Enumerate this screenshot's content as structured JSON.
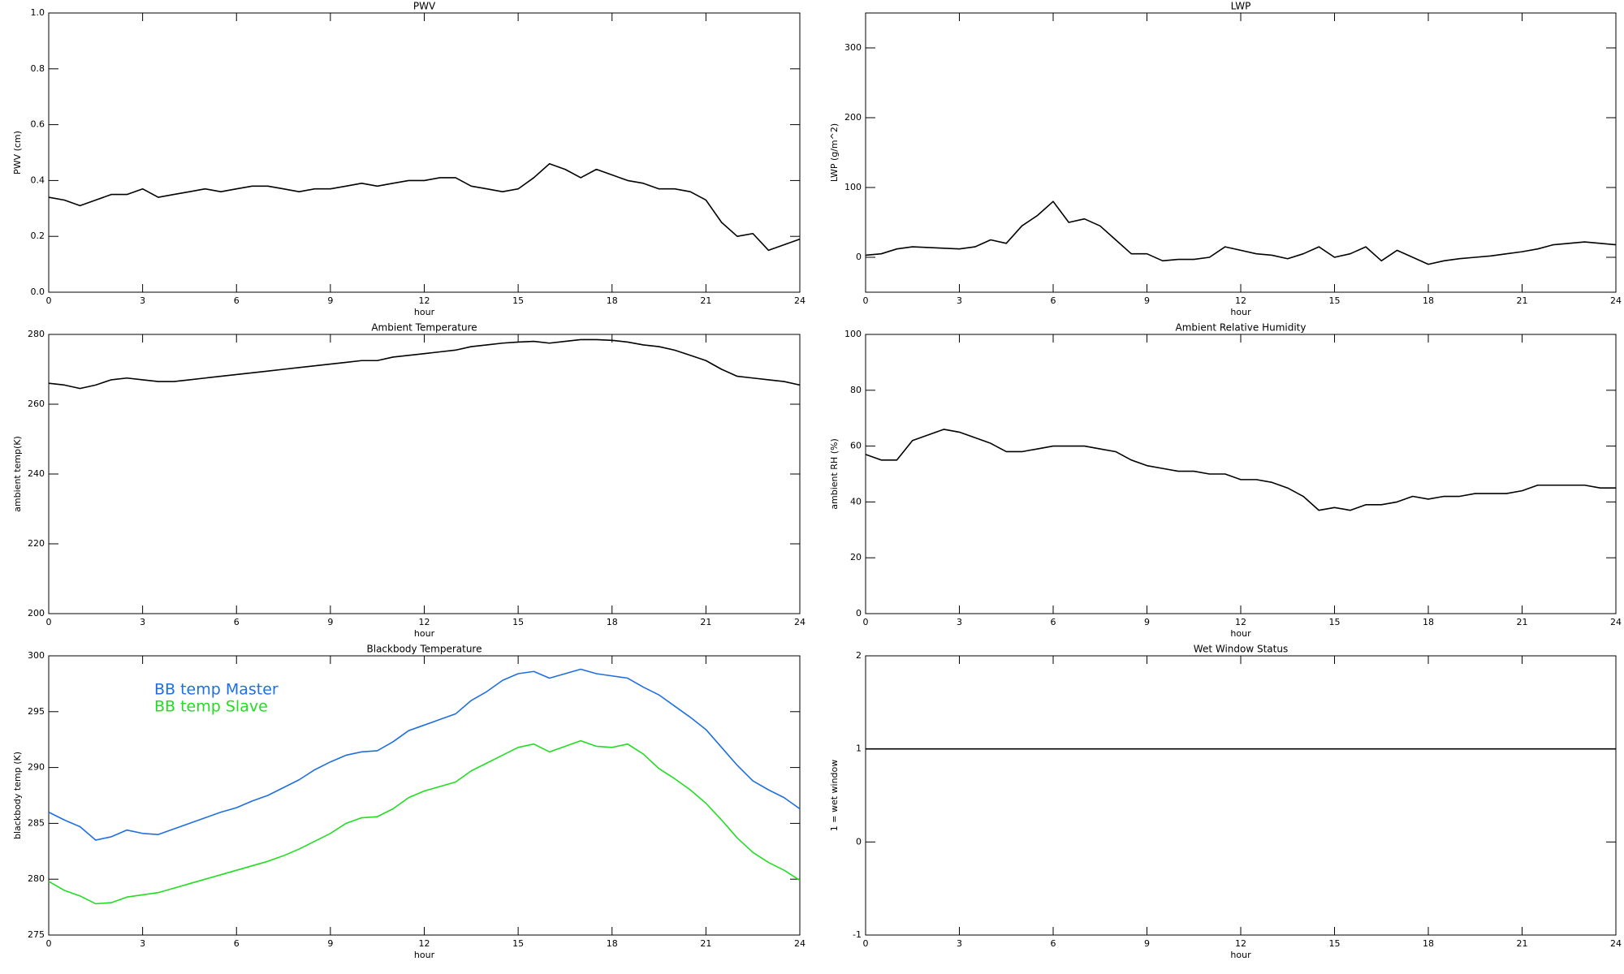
{
  "chart_data": [
    {
      "type": "line",
      "title": "PWV",
      "xlabel": "hour",
      "ylabel": "PWV (cm)",
      "xlim": [
        0,
        24
      ],
      "xticks": [
        0,
        3,
        6,
        9,
        12,
        15,
        18,
        21,
        24
      ],
      "ylim": [
        0,
        1
      ],
      "yticks": [
        {
          "value": 0,
          "label": "0.0"
        },
        0.2,
        0.4,
        0.6,
        0.8,
        {
          "value": 1,
          "label": "1.0"
        }
      ],
      "x": [
        0,
        0.5,
        1,
        1.5,
        2,
        2.5,
        3,
        3.5,
        4,
        4.5,
        5,
        5.5,
        6,
        6.5,
        7,
        7.5,
        8,
        8.5,
        9,
        9.5,
        10,
        10.5,
        11,
        11.5,
        12,
        12.5,
        13,
        13.5,
        14,
        14.5,
        15,
        15.5,
        16,
        16.5,
        17,
        17.5,
        18,
        18.5,
        19,
        19.5,
        20,
        20.5,
        21,
        21.5,
        22,
        22.5,
        23,
        23.5,
        24
      ],
      "series": [
        {
          "color": "#000000",
          "values": [
            0.34,
            0.33,
            0.31,
            0.33,
            0.35,
            0.35,
            0.37,
            0.34,
            0.35,
            0.36,
            0.37,
            0.36,
            0.37,
            0.38,
            0.38,
            0.37,
            0.36,
            0.37,
            0.37,
            0.38,
            0.39,
            0.38,
            0.39,
            0.4,
            0.4,
            0.41,
            0.41,
            0.38,
            0.37,
            0.36,
            0.37,
            0.41,
            0.46,
            0.44,
            0.41,
            0.44,
            0.42,
            0.4,
            0.39,
            0.37,
            0.37,
            0.36,
            0.33,
            0.25,
            0.2,
            0.21,
            0.15,
            0.17,
            0.19
          ]
        }
      ]
    },
    {
      "type": "line",
      "title": "LWP",
      "xlabel": "hour",
      "ylabel": "LWP (g/m^2)",
      "xlim": [
        0,
        24
      ],
      "xticks": [
        0,
        3,
        6,
        9,
        12,
        15,
        18,
        21,
        24
      ],
      "ylim": [
        -50,
        350
      ],
      "yticks": [
        0,
        100,
        200,
        300
      ],
      "x": [
        0,
        0.5,
        1,
        1.5,
        2,
        2.5,
        3,
        3.5,
        4,
        4.5,
        5,
        5.5,
        6,
        6.5,
        7,
        7.5,
        8,
        8.5,
        9,
        9.5,
        10,
        10.5,
        11,
        11.5,
        12,
        12.5,
        13,
        13.5,
        14,
        14.5,
        15,
        15.5,
        16,
        16.5,
        17,
        17.5,
        18,
        18.5,
        19,
        19.5,
        20,
        20.5,
        21,
        21.5,
        22,
        22.5,
        23,
        23.5,
        24
      ],
      "series": [
        {
          "color": "#000000",
          "values": [
            3,
            5,
            12,
            15,
            14,
            13,
            12,
            15,
            25,
            20,
            45,
            60,
            80,
            50,
            55,
            45,
            25,
            5,
            5,
            -5,
            -3,
            -3,
            0,
            15,
            10,
            5,
            3,
            -2,
            5,
            15,
            0,
            5,
            15,
            -5,
            10,
            0,
            -10,
            -5,
            -2,
            0,
            2,
            5,
            8,
            12,
            18,
            20,
            22,
            20,
            18
          ]
        }
      ]
    },
    {
      "type": "line",
      "title": "Ambient Temperature",
      "xlabel": "hour",
      "ylabel": "ambient temp(K)",
      "xlim": [
        0,
        24
      ],
      "xticks": [
        0,
        3,
        6,
        9,
        12,
        15,
        18,
        21,
        24
      ],
      "ylim": [
        200,
        280
      ],
      "yticks": [
        200,
        220,
        240,
        260,
        280
      ],
      "x": [
        0,
        0.5,
        1,
        1.5,
        2,
        2.5,
        3,
        3.5,
        4,
        4.5,
        5,
        5.5,
        6,
        6.5,
        7,
        7.5,
        8,
        8.5,
        9,
        9.5,
        10,
        10.5,
        11,
        11.5,
        12,
        12.5,
        13,
        13.5,
        14,
        14.5,
        15,
        15.5,
        16,
        16.5,
        17,
        17.5,
        18,
        18.5,
        19,
        19.5,
        20,
        20.5,
        21,
        21.5,
        22,
        22.5,
        23,
        23.5,
        24
      ],
      "series": [
        {
          "color": "#000000",
          "values": [
            266,
            265.5,
            264.5,
            265.5,
            267,
            267.5,
            267,
            266.5,
            266.5,
            267,
            267.5,
            268,
            268.5,
            269,
            269.5,
            270,
            270.5,
            271,
            271.5,
            272,
            272.5,
            272.5,
            273.5,
            274,
            274.5,
            275,
            275.5,
            276.5,
            277,
            277.5,
            277.8,
            278,
            277.5,
            278,
            278.5,
            278.5,
            278.3,
            277.8,
            277,
            276.5,
            275.5,
            274,
            272.5,
            270,
            268,
            267.5,
            267,
            266.5,
            265.5
          ]
        }
      ]
    },
    {
      "type": "line",
      "title": "Ambient Relative Humidity",
      "xlabel": "hour",
      "ylabel": "ambient RH (%)",
      "xlim": [
        0,
        24
      ],
      "xticks": [
        0,
        3,
        6,
        9,
        12,
        15,
        18,
        21,
        24
      ],
      "ylim": [
        0,
        100
      ],
      "yticks": [
        0,
        20,
        40,
        60,
        80,
        100
      ],
      "x": [
        0,
        0.5,
        1,
        1.5,
        2,
        2.5,
        3,
        3.5,
        4,
        4.5,
        5,
        5.5,
        6,
        6.5,
        7,
        7.5,
        8,
        8.5,
        9,
        9.5,
        10,
        10.5,
        11,
        11.5,
        12,
        12.5,
        13,
        13.5,
        14,
        14.5,
        15,
        15.5,
        16,
        16.5,
        17,
        17.5,
        18,
        18.5,
        19,
        19.5,
        20,
        20.5,
        21,
        21.5,
        22,
        22.5,
        23,
        23.5,
        24
      ],
      "series": [
        {
          "color": "#000000",
          "values": [
            57,
            55,
            55,
            62,
            64,
            66,
            65,
            63,
            61,
            58,
            58,
            59,
            60,
            60,
            60,
            59,
            58,
            55,
            53,
            52,
            51,
            51,
            50,
            50,
            48,
            48,
            47,
            45,
            42,
            37,
            38,
            37,
            39,
            39,
            40,
            42,
            41,
            42,
            42,
            43,
            43,
            43,
            44,
            46,
            46,
            46,
            46,
            45,
            45
          ]
        }
      ]
    },
    {
      "type": "line",
      "title": "Blackbody Temperature",
      "xlabel": "hour",
      "ylabel": "blackbody temp (K)",
      "xlim": [
        0,
        24
      ],
      "xticks": [
        0,
        3,
        6,
        9,
        12,
        15,
        18,
        21,
        24
      ],
      "ylim": [
        275,
        300
      ],
      "yticks": [
        275,
        280,
        285,
        290,
        295,
        300
      ],
      "x": [
        0,
        0.5,
        1,
        1.5,
        2,
        2.5,
        3,
        3.5,
        4,
        4.5,
        5,
        5.5,
        6,
        6.5,
        7,
        7.5,
        8,
        8.5,
        9,
        9.5,
        10,
        10.5,
        11,
        11.5,
        12,
        12.5,
        13,
        13.5,
        14,
        14.5,
        15,
        15.5,
        16,
        16.5,
        17,
        17.5,
        18,
        18.5,
        19,
        19.5,
        20,
        20.5,
        21,
        21.5,
        22,
        22.5,
        23,
        23.5,
        24
      ],
      "series": [
        {
          "name": "BB temp Master",
          "color": "#1f6fe0",
          "values": [
            286,
            285.3,
            284.7,
            283.5,
            283.8,
            284.4,
            284.1,
            284,
            284.5,
            285,
            285.5,
            286,
            286.4,
            287,
            287.5,
            288.2,
            288.9,
            289.8,
            290.5,
            291.1,
            291.4,
            291.5,
            292.3,
            293.3,
            293.8,
            294.3,
            294.8,
            296,
            296.8,
            297.8,
            298.4,
            298.6,
            298,
            298.4,
            298.8,
            298.4,
            298.2,
            298,
            297.2,
            296.5,
            295.5,
            294.5,
            293.4,
            291.8,
            290.2,
            288.8,
            288,
            287.3,
            286.3
          ]
        },
        {
          "name": "BB temp Slave",
          "color": "#22dd22",
          "values": [
            279.8,
            279,
            278.5,
            277.8,
            277.9,
            278.4,
            278.6,
            278.8,
            279.2,
            279.6,
            280,
            280.4,
            280.8,
            281.2,
            281.6,
            282.1,
            282.7,
            283.4,
            284.1,
            285,
            285.5,
            285.6,
            286.3,
            287.3,
            287.9,
            288.3,
            288.7,
            289.7,
            290.4,
            291.1,
            291.8,
            292.1,
            291.4,
            291.9,
            292.4,
            291.9,
            291.8,
            292.1,
            291.2,
            289.9,
            289,
            288,
            286.8,
            285.3,
            283.7,
            282.4,
            281.5,
            280.8,
            279.9
          ]
        }
      ]
    },
    {
      "type": "line",
      "title": "Wet Window Status",
      "xlabel": "hour",
      "ylabel": "1 = wet window",
      "xlim": [
        0,
        24
      ],
      "xticks": [
        0,
        3,
        6,
        9,
        12,
        15,
        18,
        21,
        24
      ],
      "ylim": [
        -1,
        2
      ],
      "yticks": [
        -1,
        0,
        1,
        2
      ],
      "x": [
        0,
        24
      ],
      "series": [
        {
          "color": "#000000",
          "values": [
            1,
            1
          ]
        }
      ]
    }
  ]
}
